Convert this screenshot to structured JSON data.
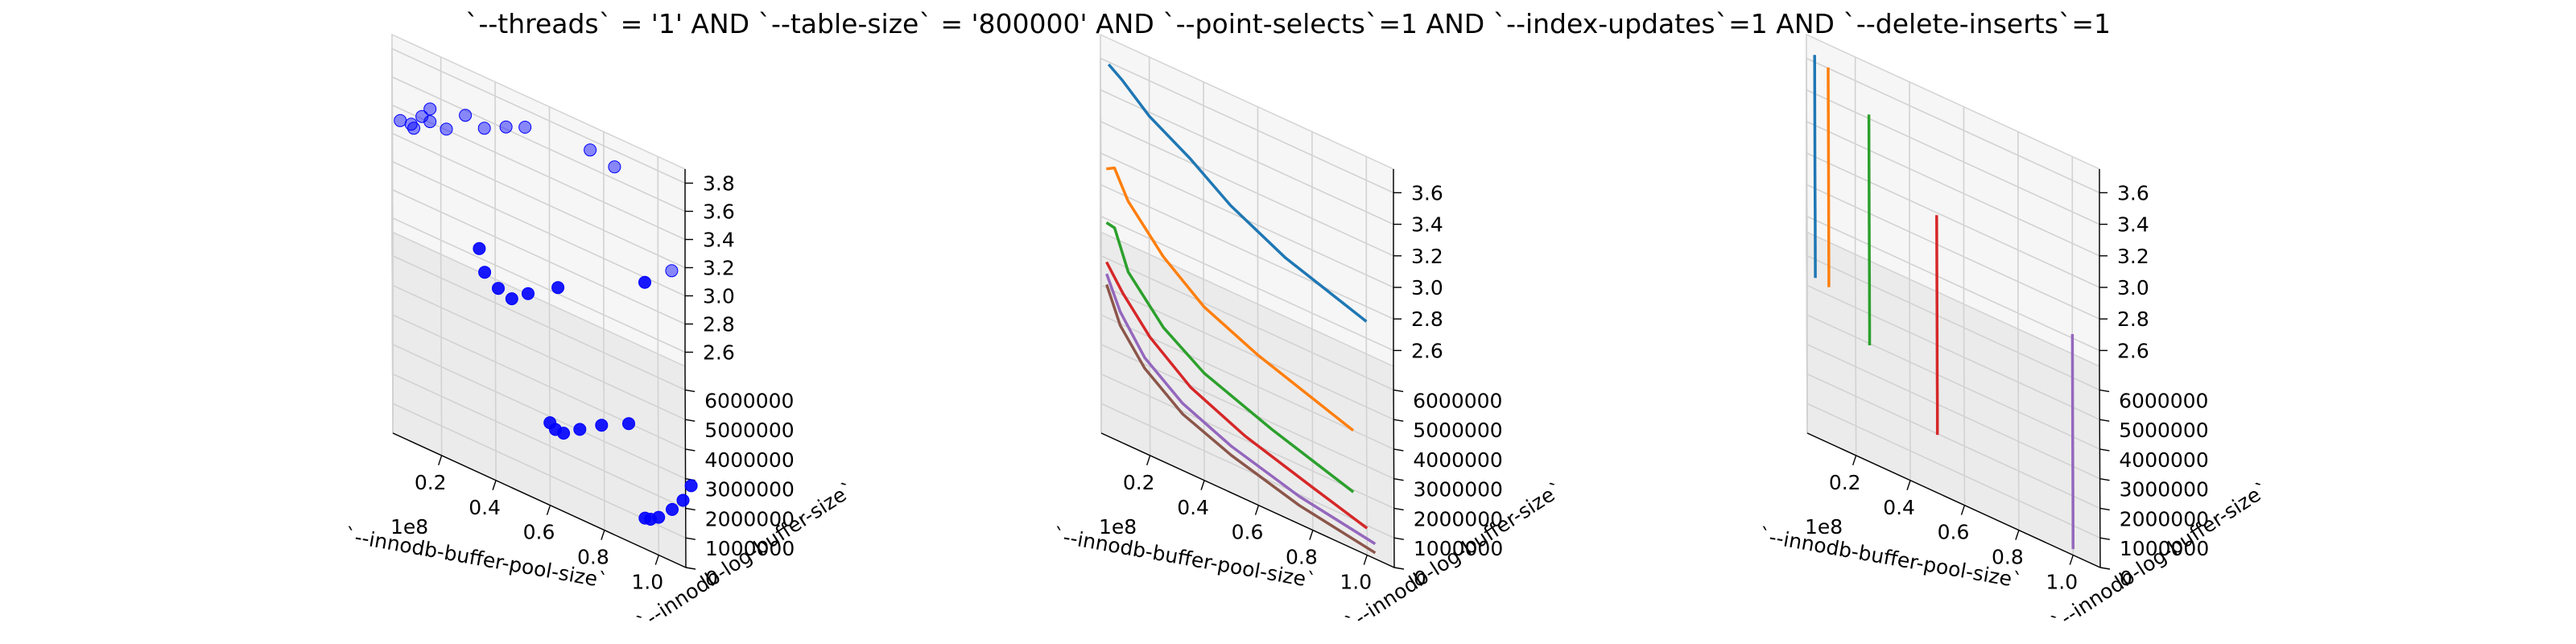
{
  "figure": {
    "title": "`--threads` = '1' AND `--table-size` = '800000'  AND `--point-selects`=1 AND `--index-updates`=1 AND `--delete-inserts`=1"
  },
  "chart_data": [
    {
      "type": "scatter",
      "xlabel": "`--innodb-buffer-pool-size`",
      "ylabel": "`--innodb-log-buffer-size`",
      "zlabel": "",
      "x_offset_label": "1e8",
      "xticks": [
        "0.2",
        "0.4",
        "0.6",
        "0.8",
        "1.0"
      ],
      "yticks": [
        "0",
        "1000000",
        "2000000",
        "3000000",
        "4000000",
        "5000000",
        "6000000"
      ],
      "zticks": [
        "2.6",
        "2.8",
        "3.0",
        "3.2",
        "3.4",
        "3.6",
        "3.8"
      ],
      "xlim": [
        0.02,
        1.1
      ],
      "ylim": [
        0,
        6800000
      ],
      "zlim": [
        2.5,
        3.9
      ],
      "grid": true,
      "marker_color": "#0000ff",
      "points": [
        {
          "x": 0.05,
          "y": 6400000,
          "z": 3.4
        },
        {
          "x": 0.09,
          "y": 6400000,
          "z": 3.41
        },
        {
          "x": 0.1,
          "y": 6400000,
          "z": 3.39
        },
        {
          "x": 0.13,
          "y": 6400000,
          "z": 3.5
        },
        {
          "x": 0.16,
          "y": 6400000,
          "z": 3.58
        },
        {
          "x": 0.16,
          "y": 6400000,
          "z": 3.49
        },
        {
          "x": 0.22,
          "y": 6400000,
          "z": 3.49
        },
        {
          "x": 0.29,
          "y": 6400000,
          "z": 3.65
        },
        {
          "x": 0.36,
          "y": 6400000,
          "z": 3.62
        },
        {
          "x": 0.44,
          "y": 6400000,
          "z": 3.7
        },
        {
          "x": 0.51,
          "y": 6400000,
          "z": 3.76
        },
        {
          "x": 0.75,
          "y": 6400000,
          "z": 3.81
        },
        {
          "x": 0.84,
          "y": 6400000,
          "z": 3.77
        },
        {
          "x": 0.34,
          "y": 3200000,
          "z": 3.42
        },
        {
          "x": 0.36,
          "y": 3200000,
          "z": 3.27
        },
        {
          "x": 0.41,
          "y": 3200000,
          "z": 3.2
        },
        {
          "x": 0.46,
          "y": 3200000,
          "z": 3.17
        },
        {
          "x": 0.52,
          "y": 3200000,
          "z": 3.26
        },
        {
          "x": 0.63,
          "y": 3200000,
          "z": 3.4
        },
        {
          "x": 0.95,
          "y": 3200000,
          "z": 3.72
        },
        {
          "x": 0.6,
          "y": 1600000,
          "z": 2.75
        },
        {
          "x": 0.62,
          "y": 1600000,
          "z": 2.72
        },
        {
          "x": 0.65,
          "y": 1600000,
          "z": 2.72
        },
        {
          "x": 0.71,
          "y": 1600000,
          "z": 2.8
        },
        {
          "x": 0.79,
          "y": 1600000,
          "z": 2.9
        },
        {
          "x": 0.89,
          "y": 1600000,
          "z": 3.0
        },
        {
          "x": 1.05,
          "y": 5200000,
          "z": 3.47
        },
        {
          "x": 0.95,
          "y": 800000,
          "z": 2.55
        },
        {
          "x": 0.97,
          "y": 800000,
          "z": 2.56
        },
        {
          "x": 1.0,
          "y": 800000,
          "z": 2.6
        },
        {
          "x": 1.05,
          "y": 800000,
          "z": 2.7
        },
        {
          "x": 1.09,
          "y": 800000,
          "z": 2.8
        },
        {
          "x": 1.12,
          "y": 800000,
          "z": 2.93
        }
      ]
    },
    {
      "type": "line",
      "xlabel": "`--innodb-buffer-pool-size`",
      "ylabel": "`--innodb-log-buffer-size`",
      "zlabel": "",
      "x_offset_label": "1e8",
      "xticks": [
        "0.2",
        "0.4",
        "0.6",
        "0.8",
        "1.0"
      ],
      "yticks": [
        "0",
        "1000000",
        "2000000",
        "3000000",
        "4000000",
        "5000000",
        "6000000"
      ],
      "zticks": [
        "2.6",
        "2.8",
        "3.0",
        "3.2",
        "3.4",
        "3.6"
      ],
      "xlim": [
        0.02,
        1.1
      ],
      "ylim": [
        0,
        6800000
      ],
      "zlim": [
        2.5,
        3.75
      ],
      "grid": true,
      "series": [
        {
          "color": "#1f77b4",
          "y": 6400000,
          "points": [
            [
              0.05,
              3.66
            ],
            [
              0.1,
              3.6
            ],
            [
              0.2,
              3.45
            ],
            [
              0.35,
              3.3
            ],
            [
              0.5,
              3.12
            ],
            [
              0.7,
              2.95
            ],
            [
              1.0,
              2.78
            ]
          ]
        },
        {
          "color": "#ff7f0e",
          "y": 3200000,
          "points": [
            [
              0.04,
              3.59
            ],
            [
              0.07,
              3.62
            ],
            [
              0.12,
              3.45
            ],
            [
              0.25,
              3.2
            ],
            [
              0.4,
              3.0
            ],
            [
              0.6,
              2.85
            ],
            [
              0.95,
              2.65
            ]
          ]
        },
        {
          "color": "#2ca02c",
          "y": 1600000,
          "points": [
            [
              0.04,
              3.55
            ],
            [
              0.07,
              3.54
            ],
            [
              0.12,
              3.3
            ],
            [
              0.25,
              3.05
            ],
            [
              0.4,
              2.88
            ],
            [
              0.65,
              2.72
            ],
            [
              0.95,
              2.56
            ]
          ]
        },
        {
          "color": "#d62728",
          "y": 800000,
          "points": [
            [
              0.04,
              3.45
            ],
            [
              0.1,
              3.3
            ],
            [
              0.2,
              3.1
            ],
            [
              0.35,
              2.9
            ],
            [
              0.55,
              2.75
            ],
            [
              0.8,
              2.62
            ],
            [
              1.0,
              2.52
            ]
          ]
        },
        {
          "color": "#9467bd",
          "y": 400000,
          "points": [
            [
              0.04,
              3.45
            ],
            [
              0.09,
              3.25
            ],
            [
              0.18,
              3.03
            ],
            [
              0.32,
              2.85
            ],
            [
              0.5,
              2.72
            ],
            [
              0.75,
              2.6
            ],
            [
              1.03,
              2.52
            ]
          ]
        },
        {
          "color": "#8c564b",
          "y": 200000,
          "points": [
            [
              0.04,
              3.42
            ],
            [
              0.09,
              3.2
            ],
            [
              0.18,
              3.0
            ],
            [
              0.32,
              2.82
            ],
            [
              0.5,
              2.7
            ],
            [
              0.75,
              2.58
            ],
            [
              1.03,
              2.5
            ]
          ]
        }
      ]
    },
    {
      "type": "line",
      "xlabel": "`--innodb-buffer-pool-size`",
      "ylabel": "`--innodb-log-buffer-size`",
      "zlabel": "",
      "x_offset_label": "1e8",
      "xticks": [
        "0.2",
        "0.4",
        "0.6",
        "0.8",
        "1.0"
      ],
      "yticks": [
        "0",
        "1000000",
        "2000000",
        "3000000",
        "4000000",
        "5000000",
        "6000000"
      ],
      "zticks": [
        "2.6",
        "2.8",
        "3.0",
        "3.2",
        "3.4",
        "3.6"
      ],
      "xlim": [
        0.02,
        1.1
      ],
      "ylim": [
        0,
        6800000
      ],
      "zlim": [
        2.5,
        3.75
      ],
      "grid": true,
      "series": [
        {
          "color": "#1f77b4",
          "x": 0.05,
          "points": [
            [
              200000,
              3.47
            ],
            [
              400000,
              3.44
            ],
            [
              800000,
              3.52
            ],
            [
              1600000,
              3.55
            ],
            [
              3200000,
              3.58
            ],
            [
              6400000,
              3.72
            ]
          ]
        },
        {
          "color": "#ff7f0e",
          "x": 0.1,
          "points": [
            [
              200000,
              3.45
            ],
            [
              400000,
              3.5
            ],
            [
              800000,
              3.52
            ],
            [
              1600000,
              3.54
            ],
            [
              3200000,
              3.58
            ],
            [
              6400000,
              3.68
            ]
          ]
        },
        {
          "color": "#2ca02c",
          "x": 0.25,
          "points": [
            [
              200000,
              3.2
            ],
            [
              400000,
              3.26
            ],
            [
              800000,
              3.3
            ],
            [
              1600000,
              3.33
            ],
            [
              3200000,
              3.4
            ],
            [
              6400000,
              3.5
            ]
          ]
        },
        {
          "color": "#d62728",
          "x": 0.5,
          "points": [
            [
              200000,
              2.83
            ],
            [
              400000,
              2.82
            ],
            [
              800000,
              2.88
            ],
            [
              1600000,
              2.91
            ],
            [
              3200000,
              2.97
            ],
            [
              6400000,
              3.06
            ]
          ]
        },
        {
          "color": "#9467bd",
          "x": 1.0,
          "points": [
            [
              200000,
              2.5
            ],
            [
              400000,
              2.51
            ],
            [
              800000,
              2.53
            ],
            [
              1600000,
              2.56
            ],
            [
              3200000,
              2.6
            ],
            [
              6400000,
              2.7
            ]
          ]
        }
      ]
    }
  ]
}
